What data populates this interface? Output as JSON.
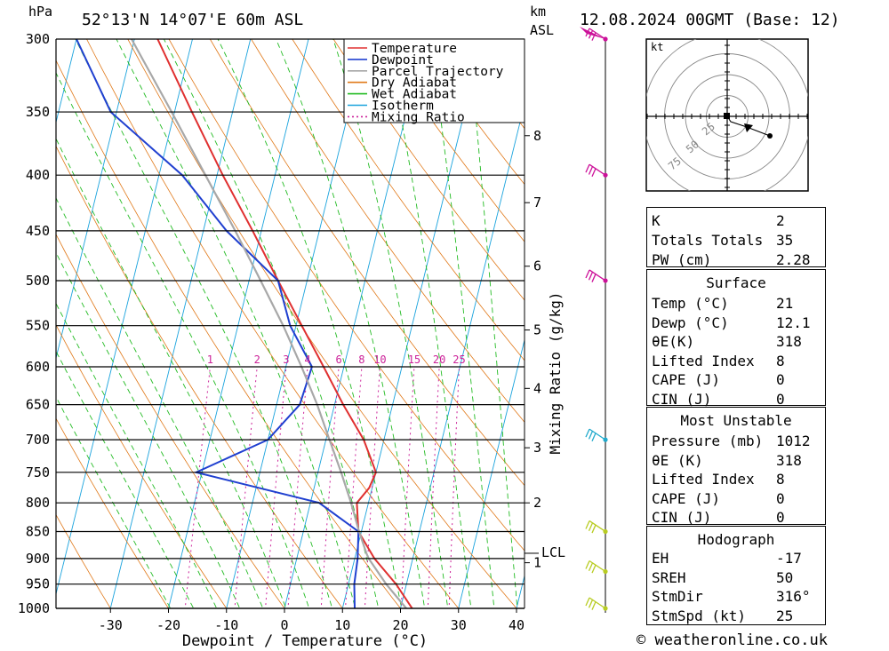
{
  "header": {
    "pressure_unit": "hPa",
    "location": "52°13'N 14°07'E 60m ASL",
    "km_label": "km",
    "asl_label": "ASL",
    "datetime": "12.08.2024 00GMT (Base: 12)",
    "credit": "© weatheronline.co.uk"
  },
  "chart_data": {
    "type": "line",
    "title": "Skew-T log-P diagram",
    "xlabel": "Dewpoint / Temperature (°C)",
    "ylabel": "hPa",
    "mixing_ratio_label": "Mixing Ratio (g/kg)",
    "x_ticks": [
      -30,
      -20,
      -10,
      0,
      10,
      20,
      30,
      40
    ],
    "pressure_levels": [
      300,
      350,
      400,
      450,
      500,
      550,
      600,
      650,
      700,
      750,
      800,
      850,
      900,
      950,
      1000
    ],
    "km_ticks": [
      {
        "km": "1",
        "p": 908
      },
      {
        "km": "2",
        "p": 800
      },
      {
        "km": "3",
        "p": 712
      },
      {
        "km": "4",
        "p": 628
      },
      {
        "km": "5",
        "p": 555
      },
      {
        "km": "6",
        "p": 485
      },
      {
        "km": "7",
        "p": 424
      },
      {
        "km": "8",
        "p": 368
      }
    ],
    "lcl": {
      "label": "LCL",
      "p": 890
    },
    "mixing_ratios": [
      "1",
      "2",
      "3",
      "4",
      "6",
      "8",
      "10",
      "15",
      "20",
      "25"
    ],
    "legend": [
      "Temperature",
      "Dewpoint",
      "Parcel Trajectory",
      "Dry Adiabat",
      "Wet Adiabat",
      "Isotherm",
      "Mixing Ratio"
    ],
    "series": [
      {
        "name": "Temperature",
        "color": "#e03030",
        "points": [
          [
            1010,
            21.5
          ],
          [
            1000,
            22
          ],
          [
            950,
            18.2
          ],
          [
            900,
            13.4
          ],
          [
            850,
            9.5
          ],
          [
            800,
            8
          ],
          [
            775,
            9.5
          ],
          [
            750,
            10
          ],
          [
            700,
            6.5
          ],
          [
            650,
            1.5
          ],
          [
            600,
            -3.5
          ],
          [
            550,
            -9
          ],
          [
            500,
            -15
          ],
          [
            450,
            -21.5
          ],
          [
            400,
            -29
          ],
          [
            350,
            -37
          ],
          [
            300,
            -46
          ]
        ]
      },
      {
        "name": "Dewpoint",
        "color": "#2040d0",
        "points": [
          [
            1010,
            13
          ],
          [
            1000,
            12.1
          ],
          [
            950,
            11
          ],
          [
            900,
            10.5
          ],
          [
            850,
            9.5
          ],
          [
            800,
            1.5
          ],
          [
            750,
            -21
          ],
          [
            700,
            -10
          ],
          [
            650,
            -6
          ],
          [
            600,
            -5.5
          ],
          [
            550,
            -11
          ],
          [
            500,
            -15
          ],
          [
            450,
            -26
          ],
          [
            400,
            -36
          ],
          [
            350,
            -51
          ],
          [
            300,
            -60
          ]
        ]
      },
      {
        "name": "Parcel Trajectory",
        "color": "#a8a8a8",
        "points": [
          [
            1000,
            21
          ],
          [
            950,
            16.5
          ],
          [
            900,
            12.4
          ],
          [
            890,
            11.8
          ],
          [
            850,
            9.6
          ],
          [
            800,
            7
          ],
          [
            750,
            4
          ],
          [
            700,
            0.6
          ],
          [
            650,
            -3
          ],
          [
            600,
            -7.3
          ],
          [
            550,
            -12.2
          ],
          [
            500,
            -18
          ],
          [
            450,
            -24.5
          ],
          [
            400,
            -32
          ],
          [
            350,
            -40.5
          ],
          [
            300,
            -50.5
          ]
        ]
      }
    ],
    "wind_barbs": [
      {
        "p": 300,
        "color": "#cc1199"
      },
      {
        "p": 400,
        "color": "#cc1199"
      },
      {
        "p": 500,
        "color": "#cc1199"
      },
      {
        "p": 700,
        "color": "#22aacc"
      },
      {
        "p": 850,
        "color": "#b8cc22"
      },
      {
        "p": 925,
        "color": "#b8cc22"
      },
      {
        "p": 1000,
        "color": "#b8cc22"
      }
    ],
    "hodograph": {
      "unit": "kt",
      "rings": [
        "25",
        "50",
        "75"
      ],
      "wind_speed_kt": 25,
      "wind_dir_deg": 316
    }
  },
  "indices": {
    "K": "2",
    "Totals Totals": "35",
    "PW (cm)": "2.28"
  },
  "surface": {
    "title": "Surface",
    "rows": [
      {
        "k": "Temp (°C)",
        "v": "21"
      },
      {
        "k": "Dewp (°C)",
        "v": "12.1"
      },
      {
        "k": "θE(K)",
        "v": "318"
      },
      {
        "k": "Lifted Index",
        "v": "8"
      },
      {
        "k": "CAPE (J)",
        "v": "0"
      },
      {
        "k": "CIN (J)",
        "v": "0"
      }
    ]
  },
  "most_unstable": {
    "title": "Most Unstable",
    "rows": [
      {
        "k": "Pressure (mb)",
        "v": "1012"
      },
      {
        "k": "θE (K)",
        "v": "318"
      },
      {
        "k": "Lifted Index",
        "v": "8"
      },
      {
        "k": "CAPE (J)",
        "v": "0"
      },
      {
        "k": "CIN (J)",
        "v": "0"
      }
    ]
  },
  "hodograph_table": {
    "title": "Hodograph",
    "rows": [
      {
        "k": "EH",
        "v": "-17"
      },
      {
        "k": "SREH",
        "v": "50"
      },
      {
        "k": "StmDir",
        "v": "316°"
      },
      {
        "k": "StmSpd (kt)",
        "v": "25"
      }
    ]
  }
}
